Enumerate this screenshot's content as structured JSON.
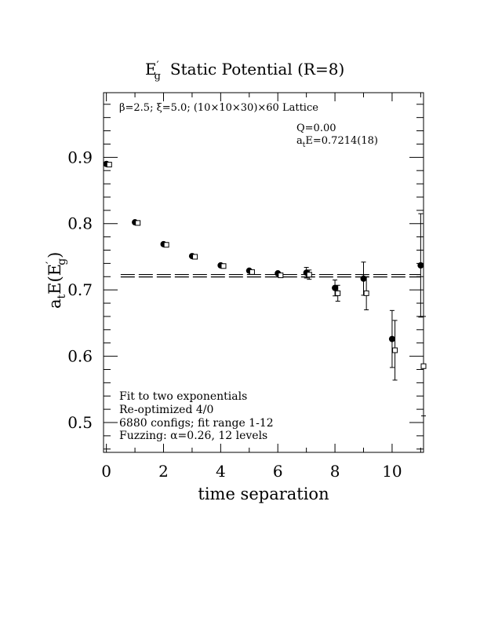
{
  "chart_data": {
    "type": "scatter",
    "title_main": "E",
    "title_prime": "′",
    "title_sub": "g",
    "title_rest": "Static Potential (R=8)",
    "xlabel": "time separation",
    "ylabel_main": "a",
    "ylabel_sub": "t",
    "ylabel_mid": "E(E",
    "ylabel_prime": "′",
    "ylabel_sub2": "g",
    "ylabel_end": ")",
    "xlim": [
      -0.1,
      11.1
    ],
    "ylim": [
      0.455,
      0.9975
    ],
    "x_ticks": [
      0,
      2,
      4,
      6,
      8,
      10
    ],
    "y_ticks": [
      0.5,
      0.6,
      0.7,
      0.8,
      0.9
    ],
    "x_tick_labels": [
      "0",
      "2",
      "4",
      "6",
      "8",
      "10"
    ],
    "y_tick_labels": [
      "0.5",
      "0.6",
      "0.7",
      "0.8",
      "0.9"
    ],
    "annotation_top": "β=2.5; ξ=5.0; (10×10×30)×60 Lattice",
    "annotation_q": "Q=0.00",
    "annotation_e_pre": "a",
    "annotation_e_sub": "t",
    "annotation_e_post": "E=0.7214(18)",
    "notes": [
      "Fit to two exponentials",
      "Re-optimized 4/0",
      "6880 configs; fit range 1-12",
      "Fuzzing: α=0.26, 12 levels"
    ],
    "fit": {
      "value": 0.7214,
      "error": 0.0018,
      "x_range": [
        0.5,
        11
      ]
    },
    "series": [
      {
        "marker": "filled-circle",
        "x": [
          0,
          1,
          2,
          3,
          4,
          5,
          6,
          7,
          8,
          9,
          10,
          11
        ],
        "y": [
          0.89,
          0.802,
          0.769,
          0.751,
          0.737,
          0.729,
          0.725,
          0.726,
          0.703,
          0.717,
          0.626,
          0.737
        ],
        "err": [
          0.001,
          0.001,
          0.001,
          0.001,
          0.001,
          0.002,
          0.003,
          0.008,
          0.012,
          0.025,
          0.043,
          0.078
        ]
      },
      {
        "marker": "open-square",
        "x": [
          0.1,
          1.1,
          2.1,
          3.1,
          4.1,
          5.1,
          6.1,
          7.1,
          8.1,
          9.1,
          10.1,
          11.1
        ],
        "y": [
          0.889,
          0.801,
          0.768,
          0.75,
          0.736,
          0.727,
          0.722,
          0.723,
          0.695,
          0.695,
          0.609,
          0.585
        ],
        "err": [
          0.001,
          0.001,
          0.001,
          0.001,
          0.001,
          0.002,
          0.003,
          0.007,
          0.012,
          0.025,
          0.045,
          0.075
        ]
      }
    ]
  }
}
